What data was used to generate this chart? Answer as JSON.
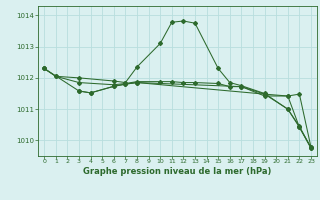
{
  "background_color": "#daf0f0",
  "grid_color": "#b8dede",
  "line_color": "#2d6a2d",
  "title": "Graphe pression niveau de la mer (hPa)",
  "xlim": [
    -0.5,
    23.5
  ],
  "ylim": [
    1009.5,
    1014.3
  ],
  "yticks": [
    1010,
    1011,
    1012,
    1013,
    1014
  ],
  "xticks": [
    0,
    1,
    2,
    3,
    4,
    5,
    6,
    7,
    8,
    9,
    10,
    11,
    12,
    13,
    14,
    15,
    16,
    17,
    18,
    19,
    20,
    21,
    22,
    23
  ],
  "series": [
    {
      "x": [
        0,
        1,
        3,
        6,
        7,
        8,
        10,
        11,
        12,
        13,
        15,
        16,
        17,
        19,
        21,
        22,
        23
      ],
      "y": [
        1012.3,
        1012.05,
        1012.0,
        1011.9,
        1011.85,
        1012.35,
        1013.1,
        1013.78,
        1013.82,
        1013.75,
        1012.3,
        1011.85,
        1011.75,
        1011.5,
        1011.0,
        1010.45,
        1009.75
      ]
    },
    {
      "x": [
        0,
        1,
        3,
        6,
        7,
        8,
        10,
        11,
        12,
        13,
        15,
        16,
        17,
        19,
        21,
        22,
        23
      ],
      "y": [
        1012.3,
        1012.05,
        1011.85,
        1011.78,
        1011.82,
        1011.88,
        1011.88,
        1011.88,
        1011.85,
        1011.85,
        1011.82,
        1011.72,
        1011.72,
        1011.48,
        1011.42,
        1010.42,
        1009.75
      ]
    },
    {
      "x": [
        0,
        3,
        4,
        6,
        7,
        8,
        19,
        21,
        22,
        23
      ],
      "y": [
        1012.3,
        1011.58,
        1011.52,
        1011.73,
        1011.8,
        1011.85,
        1011.48,
        1011.0,
        1010.42,
        1009.78
      ]
    },
    {
      "x": [
        3,
        4,
        6,
        7,
        8,
        17,
        19,
        21,
        22,
        23
      ],
      "y": [
        1011.58,
        1011.52,
        1011.73,
        1011.8,
        1011.85,
        1011.72,
        1011.42,
        1011.42,
        1011.48,
        1009.78
      ]
    }
  ]
}
